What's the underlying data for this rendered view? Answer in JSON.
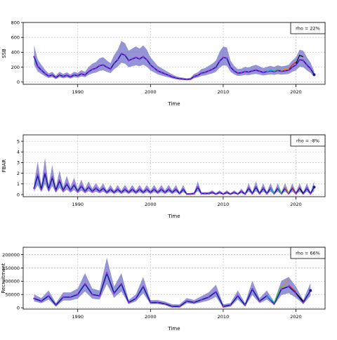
{
  "chart_data": [
    {
      "type": "line",
      "panel": "ssb",
      "xlabel": "Time",
      "ylabel": "SSB",
      "legend_text": "rho = 22%",
      "legend_position": "top-right",
      "grid": true,
      "xlim": [
        1982.5,
        2024
      ],
      "ylim": [
        -30,
        800
      ],
      "x_ticks": [
        1990,
        2000,
        2010,
        2020
      ],
      "y_ticks": [
        0,
        200,
        400,
        600,
        800
      ],
      "band_color": "#7070c8",
      "colors": {
        "main": "#1a1aa0",
        "points": "#a020f0",
        "retros": [
          "#00c0c0",
          "#40c040",
          "#e09000",
          "#d02020",
          "#000000"
        ]
      },
      "series": [
        {
          "values": [
            [
              1984,
              340
            ],
            [
              1984.5,
              210
            ],
            [
              1985,
              160
            ],
            [
              1985.5,
              115
            ],
            [
              1986,
              80
            ],
            [
              1986.5,
              95
            ],
            [
              1987,
              60
            ],
            [
              1987.5,
              95
            ],
            [
              1988,
              75
            ],
            [
              1988.5,
              90
            ],
            [
              1989,
              70
            ],
            [
              1989.5,
              95
            ],
            [
              1990,
              85
            ],
            [
              1990.5,
              110
            ],
            [
              1991,
              95
            ],
            [
              1991.5,
              140
            ],
            [
              1992,
              170
            ],
            [
              1992.5,
              185
            ],
            [
              1993,
              220
            ],
            [
              1993.5,
              230
            ],
            [
              1994,
              200
            ],
            [
              1994.5,
              175
            ],
            [
              1995,
              250
            ],
            [
              1995.5,
              300
            ],
            [
              1996,
              380
            ],
            [
              1996.5,
              360
            ],
            [
              1997,
              290
            ],
            [
              1997.5,
              310
            ],
            [
              1998,
              330
            ],
            [
              1998.5,
              310
            ],
            [
              1999,
              340
            ],
            [
              1999.5,
              300
            ],
            [
              2000,
              230
            ],
            [
              2000.5,
              190
            ],
            [
              2001,
              150
            ],
            [
              2001.5,
              130
            ],
            [
              2002,
              110
            ],
            [
              2002.5,
              90
            ],
            [
              2003,
              70
            ],
            [
              2003.5,
              55
            ],
            [
              2004,
              45
            ],
            [
              2004.5,
              40
            ],
            [
              2005,
              35
            ],
            [
              2005.5,
              40
            ],
            [
              2006,
              75
            ],
            [
              2006.5,
              90
            ],
            [
              2007,
              120
            ],
            [
              2007.5,
              130
            ],
            [
              2008,
              150
            ],
            [
              2008.5,
              170
            ],
            [
              2009,
              200
            ],
            [
              2009.5,
              280
            ],
            [
              2010,
              330
            ],
            [
              2010.5,
              320
            ],
            [
              2011,
              200
            ],
            [
              2011.5,
              150
            ],
            [
              2012,
              120
            ],
            [
              2012.5,
              125
            ],
            [
              2013,
              140
            ],
            [
              2013.5,
              135
            ],
            [
              2014,
              150
            ],
            [
              2014.5,
              160
            ],
            [
              2015,
              145
            ],
            [
              2015.5,
              130
            ],
            [
              2016,
              140
            ],
            [
              2016.5,
              150
            ],
            [
              2017,
              140
            ],
            [
              2017.5,
              155
            ],
            [
              2018,
              145
            ],
            [
              2018.5,
              150
            ],
            [
              2019,
              160
            ],
            [
              2019.5,
              200
            ],
            [
              2020,
              230
            ],
            [
              2020.5,
              300
            ],
            [
              2021,
              290
            ],
            [
              2021.5,
              230
            ],
            [
              2022,
              180
            ],
            [
              2022.5,
              100
            ]
          ]
        }
      ],
      "retros": [
        {
          "end": 2017,
          "values": [
            [
              2016,
              140
            ],
            [
              2016.5,
              160
            ],
            [
              2017,
              150
            ]
          ]
        },
        {
          "end": 2018,
          "values": [
            [
              2017,
              145
            ],
            [
              2017.5,
              170
            ],
            [
              2018,
              160
            ]
          ]
        },
        {
          "end": 2019,
          "values": [
            [
              2018,
              150
            ],
            [
              2018.5,
              175
            ],
            [
              2019,
              170
            ]
          ]
        },
        {
          "end": 2020,
          "values": [
            [
              2019,
              170
            ],
            [
              2019.5,
              230
            ],
            [
              2020,
              270
            ]
          ]
        },
        {
          "end": 2021,
          "values": [
            [
              2020,
              250
            ],
            [
              2020.5,
              360
            ],
            [
              2021,
              340
            ]
          ]
        }
      ]
    },
    {
      "type": "line",
      "panel": "fbar",
      "xlabel": "Time",
      "ylabel": "FBAR",
      "legend_text": "rho = -8%",
      "legend_position": "top-right",
      "grid": true,
      "xlim": [
        1982.5,
        2024
      ],
      "ylim": [
        -0.2,
        5.6
      ],
      "x_ticks": [
        1990,
        2000,
        2010,
        2020
      ],
      "y_ticks": [
        0,
        1,
        2,
        3,
        4,
        5
      ],
      "band_color": "#7070c8",
      "colors": {
        "main": "#1a1aa0",
        "points": "#a020f0",
        "retros": [
          "#00c0c0",
          "#40c040",
          "#e09000",
          "#d02020",
          "#000000"
        ]
      },
      "series": [
        {
          "values": [
            [
              1984,
              0.6
            ],
            [
              1984.5,
              1.8
            ],
            [
              1985,
              0.5
            ],
            [
              1985.5,
              2.0
            ],
            [
              1986,
              0.5
            ],
            [
              1986.5,
              1.6
            ],
            [
              1987,
              0.4
            ],
            [
              1987.5,
              1.3
            ],
            [
              1988,
              0.4
            ],
            [
              1988.5,
              1.0
            ],
            [
              1989,
              0.4
            ],
            [
              1989.5,
              0.9
            ],
            [
              1990,
              0.3
            ],
            [
              1990.5,
              0.8
            ],
            [
              1991,
              0.3
            ],
            [
              1991.5,
              0.7
            ],
            [
              1992,
              0.3
            ],
            [
              1992.5,
              0.6
            ],
            [
              1993,
              0.3
            ],
            [
              1993.5,
              0.6
            ],
            [
              1994,
              0.2
            ],
            [
              1994.5,
              0.5
            ],
            [
              1995,
              0.2
            ],
            [
              1995.5,
              0.5
            ],
            [
              1996,
              0.2
            ],
            [
              1996.5,
              0.5
            ],
            [
              1997,
              0.2
            ],
            [
              1997.5,
              0.5
            ],
            [
              1998,
              0.2
            ],
            [
              1998.5,
              0.5
            ],
            [
              1999,
              0.2
            ],
            [
              1999.5,
              0.5
            ],
            [
              2000,
              0.2
            ],
            [
              2000.5,
              0.5
            ],
            [
              2001,
              0.2
            ],
            [
              2001.5,
              0.5
            ],
            [
              2002,
              0.2
            ],
            [
              2002.5,
              0.5
            ],
            [
              2003,
              0.2
            ],
            [
              2003.5,
              0.5
            ],
            [
              2004,
              0.1
            ],
            [
              2004.5,
              0.5
            ],
            [
              2005,
              0.05
            ],
            [
              2005.5,
              0.05
            ],
            [
              2006,
              0.1
            ],
            [
              2006.5,
              0.7
            ],
            [
              2007,
              0.1
            ],
            [
              2007.5,
              0.1
            ],
            [
              2008,
              0.1
            ],
            [
              2008.5,
              0.2
            ],
            [
              2009,
              0.05
            ],
            [
              2009.5,
              0.2
            ],
            [
              2010,
              0.05
            ],
            [
              2010.5,
              0.2
            ],
            [
              2011,
              0.05
            ],
            [
              2011.5,
              0.2
            ],
            [
              2012,
              0.05
            ],
            [
              2012.5,
              0.3
            ],
            [
              2013,
              0.05
            ],
            [
              2013.5,
              0.6
            ],
            [
              2014,
              0.1
            ],
            [
              2014.5,
              0.7
            ],
            [
              2015,
              0.1
            ],
            [
              2015.5,
              0.6
            ],
            [
              2016,
              0.1
            ],
            [
              2016.5,
              0.6
            ],
            [
              2017,
              0.1
            ],
            [
              2017.5,
              0.6
            ],
            [
              2018,
              0.1
            ],
            [
              2018.5,
              0.6
            ],
            [
              2019,
              0.1
            ],
            [
              2019.5,
              0.6
            ],
            [
              2020,
              0.1
            ],
            [
              2020.5,
              0.6
            ],
            [
              2021,
              0.1
            ],
            [
              2021.5,
              0.6
            ],
            [
              2022,
              0.1
            ],
            [
              2022.5,
              0.7
            ]
          ]
        }
      ],
      "retros": [
        {
          "end": 2017,
          "values": [
            [
              2016.5,
              0.6
            ],
            [
              2017,
              0.1
            ]
          ]
        },
        {
          "end": 2018,
          "values": [
            [
              2017.5,
              0.7
            ],
            [
              2018,
              0.1
            ]
          ]
        },
        {
          "end": 2019,
          "values": [
            [
              2018.5,
              0.7
            ],
            [
              2019,
              0.15
            ]
          ]
        },
        {
          "end": 2020,
          "values": [
            [
              2019.5,
              0.6
            ],
            [
              2020,
              0.1
            ]
          ]
        },
        {
          "end": 2021,
          "values": [
            [
              2020.5,
              0.6
            ],
            [
              2021,
              0.1
            ]
          ]
        }
      ]
    },
    {
      "type": "line",
      "panel": "recruitment",
      "xlabel": "Time",
      "ylabel": "Recruitment",
      "legend_text": "rho = 66%",
      "legend_position": "top-right",
      "grid": true,
      "xlim": [
        1982.5,
        2024
      ],
      "ylim": [
        -5000,
        228000
      ],
      "x_ticks": [
        1990,
        2000,
        2010,
        2020
      ],
      "y_ticks": [
        0,
        50000,
        100000,
        150000,
        200000
      ],
      "y_tick_labels": [
        "0",
        "50000",
        "100000",
        "150000",
        "200000"
      ],
      "band_color": "#7070c8",
      "colors": {
        "main": "#1a1aa0",
        "points": "#a020f0",
        "retros": [
          "#00c0c0",
          "#40c040",
          "#e09000",
          "#d02020",
          "#000000"
        ]
      },
      "series": [
        {
          "values": [
            [
              1984,
              35000
            ],
            [
              1985,
              25000
            ],
            [
              1986,
              45000
            ],
            [
              1987,
              10000
            ],
            [
              1988,
              40000
            ],
            [
              1989,
              40000
            ],
            [
              1990,
              50000
            ],
            [
              1991,
              90000
            ],
            [
              1992,
              50000
            ],
            [
              1993,
              45000
            ],
            [
              1994,
              130000
            ],
            [
              1995,
              55000
            ],
            [
              1996,
              90000
            ],
            [
              1997,
              20000
            ],
            [
              1998,
              35000
            ],
            [
              1999,
              80000
            ],
            [
              2000,
              20000
            ],
            [
              2001,
              20000
            ],
            [
              2002,
              15000
            ],
            [
              2003,
              5000
            ],
            [
              2004,
              5000
            ],
            [
              2005,
              25000
            ],
            [
              2006,
              20000
            ],
            [
              2007,
              30000
            ],
            [
              2008,
              40000
            ],
            [
              2009,
              60000
            ],
            [
              2010,
              5000
            ],
            [
              2011,
              10000
            ],
            [
              2012,
              45000
            ],
            [
              2013,
              10000
            ],
            [
              2014,
              70000
            ],
            [
              2015,
              25000
            ],
            [
              2016,
              45000
            ],
            [
              2017,
              15000
            ],
            [
              2018,
              70000
            ],
            [
              2019,
              80000
            ],
            [
              2020,
              55000
            ],
            [
              2021,
              20000
            ],
            [
              2022,
              65000
            ]
          ]
        }
      ],
      "retros": [
        {
          "end": 2017,
          "values": [
            [
              2016,
              45000
            ],
            [
              2017,
              20000
            ]
          ]
        },
        {
          "end": 2018,
          "values": [
            [
              2017,
              20000
            ],
            [
              2018,
              80000
            ]
          ]
        },
        {
          "end": 2019,
          "values": [
            [
              2018,
              75000
            ],
            [
              2019,
              105000
            ]
          ]
        },
        {
          "end": 2020,
          "values": [
            [
              2019,
              85000
            ],
            [
              2020,
              60000
            ]
          ]
        },
        {
          "end": 2021,
          "values": [
            [
              2020,
              55000
            ],
            [
              2021,
              25000
            ]
          ]
        }
      ]
    }
  ]
}
